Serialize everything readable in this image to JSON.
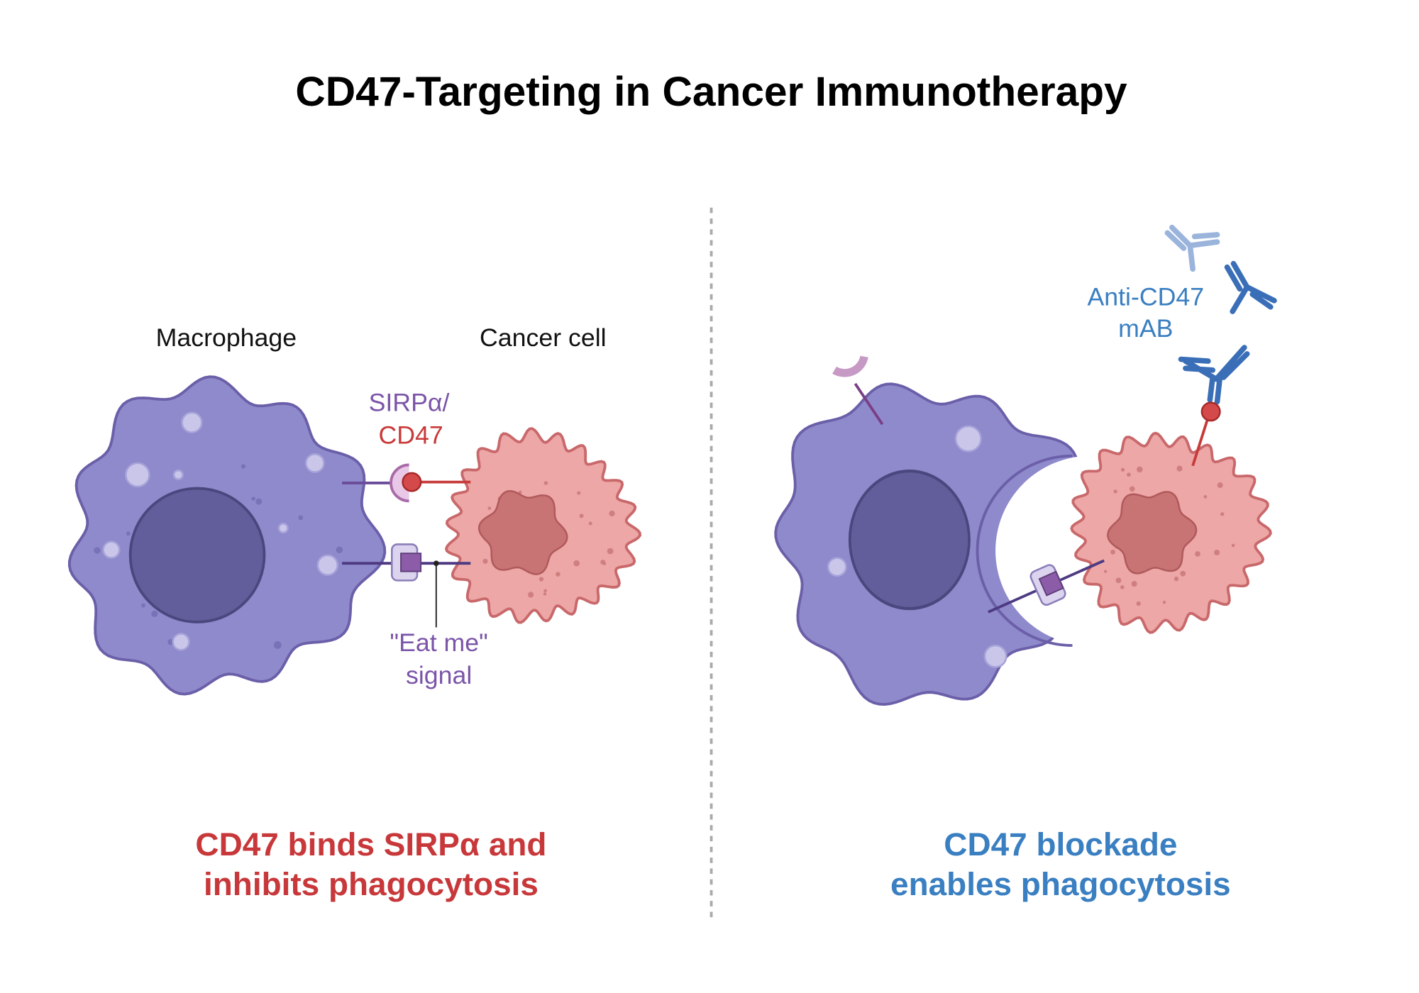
{
  "title": "CD47-Targeting in Cancer Immunotherapy",
  "left_panel": {
    "macrophage_label": "Macrophage",
    "cancer_cell_label": "Cancer cell",
    "receptor_label": {
      "line1": "SIRPα/",
      "line2": "CD47"
    },
    "signal_label": {
      "line1": "\"Eat me\"",
      "line2": "signal"
    },
    "caption": {
      "line1": "CD47 binds SIRPα and",
      "line2": "inhibits phagocytosis"
    }
  },
  "right_panel": {
    "antibody_label": {
      "line1": "Anti-CD47",
      "line2": "mAB"
    },
    "caption": {
      "line1": "CD47 blockade",
      "line2": "enables phagocytosis"
    }
  }
}
